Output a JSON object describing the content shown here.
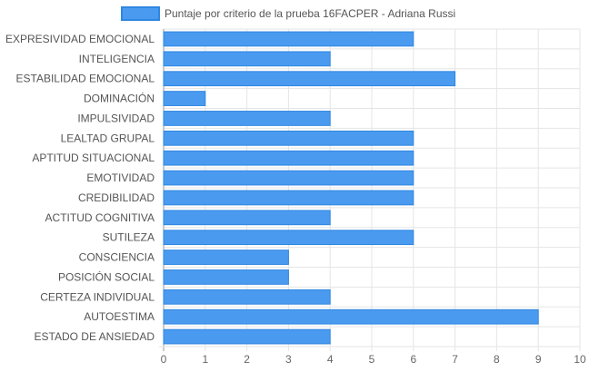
{
  "chart_data": {
    "type": "bar",
    "orientation": "horizontal",
    "categories": [
      "EXPRESIVIDAD EMOCIONAL",
      "INTELIGENCIA",
      "ESTABILIDAD EMOCIONAL",
      "DOMINACIÓN",
      "IMPULSIVIDAD",
      "LEALTAD GRUPAL",
      "APTITUD SITUACIONAL",
      "EMOTIVIDAD",
      "CREDIBILIDAD",
      "ACTITUD COGNITIVA",
      "SUTILEZA",
      "CONSCIENCIA",
      "POSICIÓN SOCIAL",
      "CERTEZA INDIVIDUAL",
      "AUTOESTIMA",
      "ESTADO DE ANSIEDAD"
    ],
    "series": [
      {
        "name": "Puntaje por criterio de la prueba 16FACPER - Adriana Russi",
        "values": [
          6,
          4,
          7,
          1,
          4,
          6,
          6,
          6,
          6,
          4,
          6,
          3,
          3,
          4,
          9,
          4
        ],
        "color": "#4a9bf0",
        "border_color": "#2f86e0"
      }
    ],
    "xlim": [
      0,
      10
    ],
    "x_ticks": [
      "0",
      "1",
      "2",
      "3",
      "4",
      "5",
      "6",
      "7",
      "8",
      "9",
      "10"
    ],
    "grid": true,
    "legend_position": "top-center"
  }
}
